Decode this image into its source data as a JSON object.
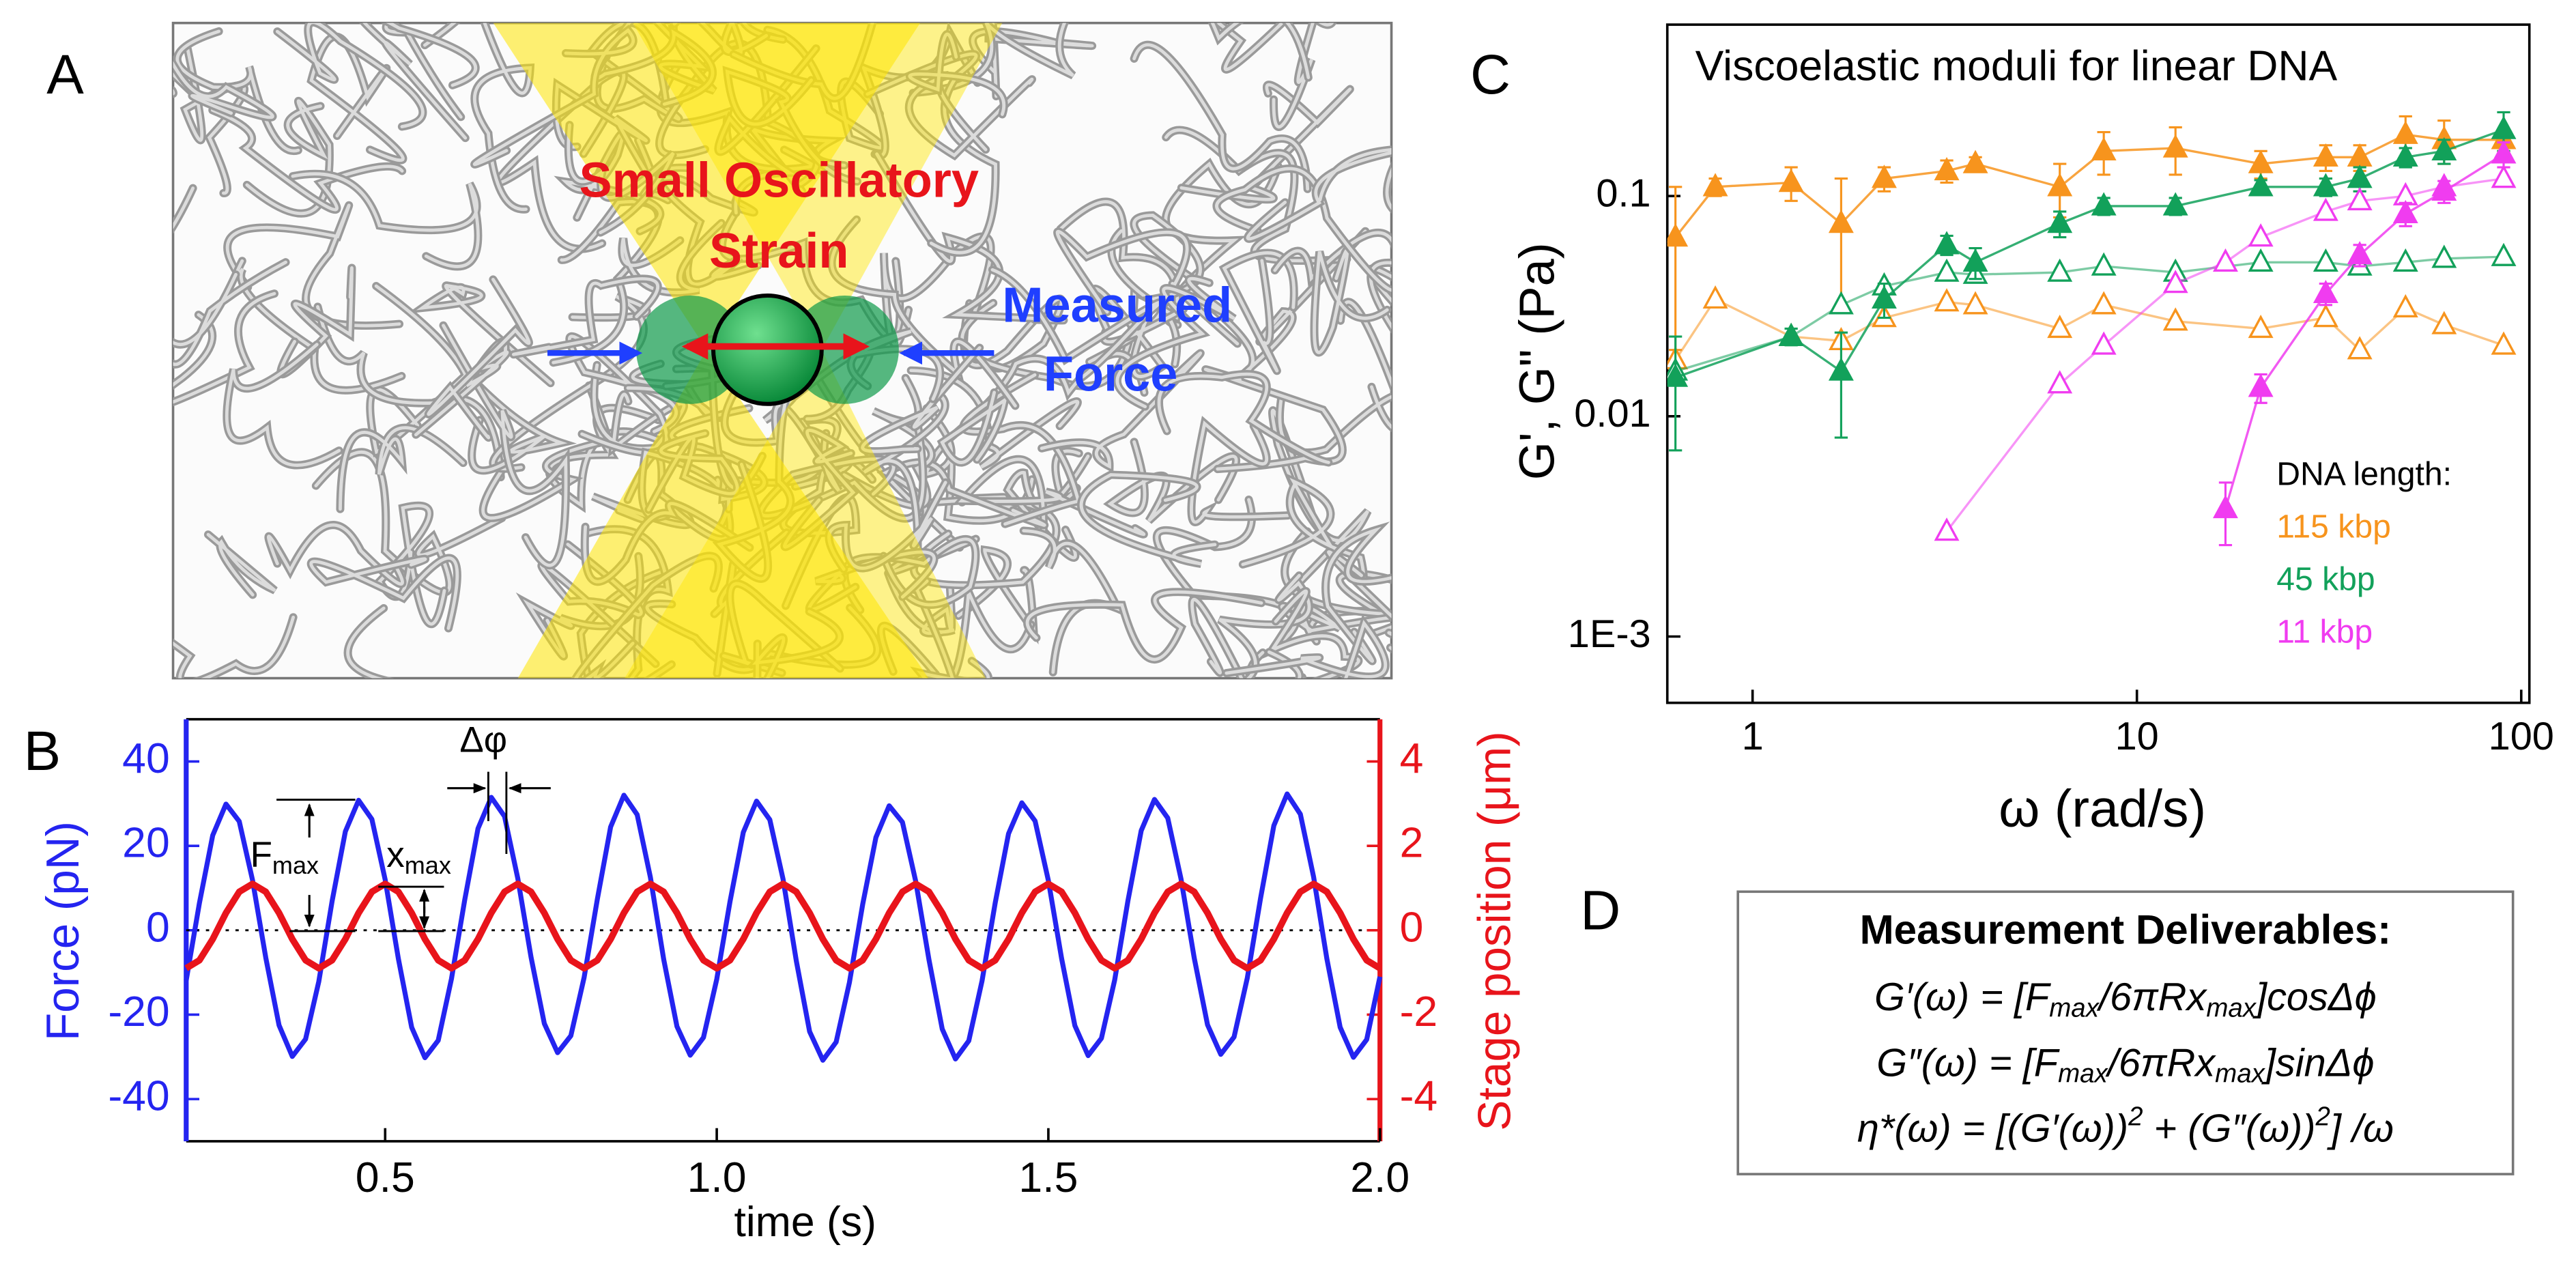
{
  "panel_labels": [
    "A",
    "B",
    "C",
    "D"
  ],
  "panel_a": {
    "strain_label": [
      "Small Oscillatory",
      "Strain"
    ],
    "force_label": [
      "Measured",
      "Force"
    ]
  },
  "chart_data": [
    {
      "type": "line",
      "x_label": "time (s)",
      "y_label": "Force (pN)",
      "y2_label": "Stage position (μm)",
      "xlim": [
        0.2,
        2.0
      ],
      "xticks": [
        0.5,
        {
          "value": 1,
          "label": "1.0"
        },
        1.5,
        {
          "value": 2,
          "label": "2.0"
        }
      ],
      "ylim": [
        -50,
        50
      ],
      "yticks": [
        40,
        20,
        0,
        -20,
        -40
      ],
      "y2lim": [
        -5,
        5
      ],
      "y2ticks": [
        4,
        2,
        0,
        -2,
        -4
      ],
      "annotations": [
        {
          "text": "Δφ"
        },
        {
          "text": "F",
          "sub": "max"
        },
        {
          "text": "x",
          "sub": "max"
        }
      ],
      "x": [
        0.2,
        0.22,
        0.24,
        0.26,
        0.28,
        0.3,
        0.32,
        0.34,
        0.36,
        0.38,
        0.4,
        0.42,
        0.44,
        0.46,
        0.48,
        0.5,
        0.52,
        0.54,
        0.56,
        0.58,
        0.6,
        0.62,
        0.64,
        0.66,
        0.68,
        0.7,
        0.72,
        0.74,
        0.76,
        0.78,
        0.8,
        0.82,
        0.84,
        0.86,
        0.88,
        0.9,
        0.92,
        0.94,
        0.96,
        0.98,
        1.0,
        1.02,
        1.04,
        1.06,
        1.08,
        1.1,
        1.12,
        1.14,
        1.16,
        1.18,
        1.2,
        1.22,
        1.24,
        1.26,
        1.28,
        1.3,
        1.32,
        1.34,
        1.36,
        1.38,
        1.4,
        1.42,
        1.44,
        1.46,
        1.48,
        1.5,
        1.52,
        1.54,
        1.56,
        1.58,
        1.6,
        1.62,
        1.64,
        1.66,
        1.68,
        1.7,
        1.72,
        1.74,
        1.76,
        1.78,
        1.8,
        1.82,
        1.84,
        1.86,
        1.88,
        1.9,
        1.92,
        1.94,
        1.96,
        1.98,
        2.0
      ],
      "series": [
        {
          "color": "#2424f0",
          "values": [
            -11.9,
            6.5,
            22.5,
            29.9,
            25.8,
            11.9,
            -6.5,
            -22.5,
            -29.9,
            -25.8,
            -12.1,
            6.9,
            23.4,
            30.8,
            26.3,
            12.0,
            -6.8,
            -23.0,
            -30.2,
            -26.1,
            -11.5,
            7.2,
            24.1,
            31.5,
            27.0,
            12.3,
            -6.4,
            -22.1,
            -29.0,
            -25.0,
            -11.2,
            7.4,
            24.5,
            32.0,
            27.4,
            12.5,
            -6.9,
            -22.8,
            -29.6,
            -25.4,
            -11.6,
            6.8,
            23.2,
            30.6,
            26.2,
            12.1,
            -7.3,
            -24.0,
            -30.8,
            -26.5,
            -12.4,
            6.1,
            22.0,
            29.5,
            25.6,
            11.6,
            -7.0,
            -23.4,
            -30.5,
            -26.2,
            -12.0,
            6.6,
            22.9,
            30.2,
            25.9,
            11.8,
            -6.7,
            -22.6,
            -29.7,
            -25.6,
            -11.8,
            7.0,
            23.6,
            31.0,
            26.6,
            12.2,
            -6.6,
            -22.4,
            -29.4,
            -25.3,
            -11.3,
            7.6,
            24.8,
            32.3,
            27.5,
            12.6,
            -6.8,
            -23.0,
            -30.1,
            -25.9,
            -11.0
          ]
        },
        {
          "color": "#e8141b",
          "axis": "y2",
          "values": [
            -0.9,
            -0.71,
            -0.21,
            0.41,
            0.91,
            1.1,
            0.91,
            0.41,
            -0.21,
            -0.71,
            -0.9,
            -0.71,
            -0.21,
            0.41,
            0.91,
            1.1,
            0.91,
            0.41,
            -0.21,
            -0.71,
            -0.9,
            -0.71,
            -0.21,
            0.41,
            0.91,
            1.1,
            0.91,
            0.41,
            -0.21,
            -0.71,
            -0.9,
            -0.71,
            -0.21,
            0.41,
            0.91,
            1.1,
            0.91,
            0.41,
            -0.21,
            -0.71,
            -0.9,
            -0.71,
            -0.21,
            0.41,
            0.91,
            1.1,
            0.91,
            0.41,
            -0.21,
            -0.71,
            -0.9,
            -0.71,
            -0.21,
            0.41,
            0.91,
            1.1,
            0.91,
            0.41,
            -0.21,
            -0.71,
            -0.9,
            -0.71,
            -0.21,
            0.41,
            0.91,
            1.1,
            0.91,
            0.41,
            -0.21,
            -0.71,
            -0.9,
            -0.71,
            -0.21,
            0.41,
            0.91,
            1.1,
            0.91,
            0.41,
            -0.21,
            -0.71,
            -0.9,
            -0.71,
            -0.21,
            0.41,
            0.91,
            1.1,
            0.91,
            0.41,
            -0.21,
            -0.71,
            -0.9
          ]
        }
      ]
    },
    {
      "type": "scatter",
      "title": "Viscoelastic moduli for linear DNA",
      "x_label": "ω (rad/s)",
      "y_label": "G', G\" (Pa)",
      "xscale": "log",
      "yscale": "log",
      "xlim": [
        0.6,
        105
      ],
      "xticks": [
        1,
        10,
        100
      ],
      "ylim": [
        0.0005,
        0.6
      ],
      "yticks": [
        0.1,
        0.01,
        {
          "value": 0.001,
          "label": "1E-3"
        }
      ],
      "legend_title": "DNA length:",
      "series": [
        {
          "name": "115 kbp",
          "color": "#f7941d",
          "filled": {
            "x": [
              0.63,
              0.8,
              1.26,
              1.7,
              2.2,
              3.2,
              3.8,
              6.3,
              8.2,
              12.6,
              21,
              31,
              38,
              50,
              63,
              90
            ],
            "values": [
              0.065,
              0.11,
              0.115,
              0.075,
              0.12,
              0.13,
              0.14,
              0.11,
              0.16,
              0.165,
              0.14,
              0.15,
              0.15,
              0.19,
              0.18,
              0.18
            ],
            "errors": [
              0.045,
              0.01,
              0.02,
              0.045,
              0.015,
              0.015,
              0.01,
              0.03,
              0.035,
              0.04,
              0.02,
              0.02,
              0.02,
              0.04,
              0.04,
              0.02
            ]
          },
          "open": {
            "x": [
              0.63,
              0.8,
              1.26,
              1.7,
              2.2,
              3.2,
              3.8,
              6.3,
              8.2,
              12.6,
              21,
              31,
              38,
              50,
              63,
              90
            ],
            "values": [
              0.018,
              0.034,
              0.023,
              0.022,
              0.028,
              0.033,
              0.032,
              0.025,
              0.032,
              0.027,
              0.025,
              0.028,
              0.02,
              0.031,
              0.026,
              0.021
            ]
          }
        },
        {
          "name": "45 kbp",
          "color": "#12a15a",
          "filled": {
            "x": [
              0.63,
              1.26,
              1.7,
              2.2,
              3.2,
              3.8,
              6.3,
              8.2,
              12.6,
              21,
              31,
              38,
              50,
              63,
              90
            ],
            "values": [
              0.015,
              0.023,
              0.016,
              0.034,
              0.06,
              0.05,
              0.075,
              0.09,
              0.09,
              0.11,
              0.11,
              0.12,
              0.15,
              0.16,
              0.2
            ],
            "errors": [
              0.008,
              0.002,
              0.008,
              0.006,
              0.006,
              0.008,
              0.01,
              0.008,
              0.008,
              0.008,
              0.01,
              0.015,
              0.015,
              0.02,
              0.04
            ]
          },
          "open": {
            "x": [
              0.63,
              1.26,
              1.7,
              2.2,
              3.2,
              3.8,
              6.3,
              8.2,
              12.6,
              21,
              31,
              38,
              50,
              63,
              90
            ],
            "values": [
              0.016,
              0.023,
              0.032,
              0.039,
              0.045,
              0.044,
              0.045,
              0.048,
              0.045,
              0.05,
              0.05,
              0.048,
              0.05,
              0.052,
              0.053
            ]
          }
        },
        {
          "name": "11 kbp",
          "color": "#f03cf0",
          "filled": {
            "x": [
              17,
              21,
              31,
              38,
              50,
              63,
              90
            ],
            "values": [
              0.0038,
              0.0135,
              0.036,
              0.054,
              0.083,
              0.105,
              0.155
            ],
            "errors": [
              0.0012,
              0.002,
              0.004,
              0.006,
              0.01,
              0.012,
              0.02
            ]
          },
          "open": {
            "x": [
              3.2,
              6.3,
              8.2,
              12.6,
              17,
              21,
              31,
              38,
              50,
              63,
              90
            ],
            "values": [
              0.003,
              0.014,
              0.021,
              0.04,
              0.05,
              0.065,
              0.085,
              0.095,
              0.1,
              0.11,
              0.12
            ]
          }
        }
      ]
    }
  ],
  "panel_d": {
    "title": "Measurement Deliverables:",
    "equations": [
      [
        {
          "text": "G′(ω) = [F"
        },
        {
          "text": "max",
          "shift": "sub"
        },
        {
          "text": "/6πRx"
        },
        {
          "text": "max",
          "shift": "sub"
        },
        {
          "text": "]cosΔϕ"
        }
      ],
      [
        {
          "text": "G″(ω) = [F"
        },
        {
          "text": "max",
          "shift": "sub"
        },
        {
          "text": "/6πRx"
        },
        {
          "text": "max",
          "shift": "sub"
        },
        {
          "text": "]sinΔϕ"
        }
      ],
      [
        {
          "text": "η*(ω) = [(G′(ω))"
        },
        {
          "text": "2",
          "shift": "sup"
        },
        {
          "text": " + (G″(ω))"
        },
        {
          "text": "2",
          "shift": "sup"
        },
        {
          "text": "] /ω"
        }
      ]
    ]
  }
}
